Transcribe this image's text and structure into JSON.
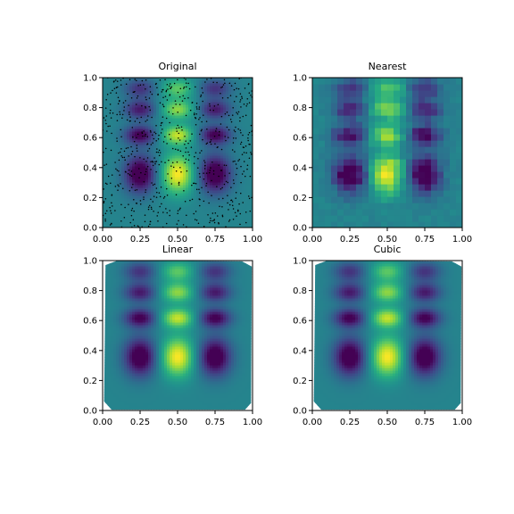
{
  "chart_data": [
    {
      "type": "heatmap",
      "panel": "original",
      "title": "Original",
      "xlim": [
        0.0,
        1.0
      ],
      "ylim": [
        0.0,
        1.0
      ],
      "xticks": [
        "0.00",
        "0.25",
        "0.50",
        "0.75",
        "1.00"
      ],
      "yticks": [
        "0.0",
        "0.2",
        "0.4",
        "0.6",
        "0.8",
        "1.0"
      ],
      "colormap": "viridis",
      "field": "smooth",
      "has_scatter": true,
      "scatter_color": "#000000",
      "coverage": "full"
    },
    {
      "type": "heatmap",
      "panel": "nearest",
      "title": "Nearest",
      "xlim": [
        0.0,
        1.0
      ],
      "ylim": [
        0.0,
        1.0
      ],
      "xticks": [
        "0.00",
        "0.25",
        "0.50",
        "0.75",
        "1.00"
      ],
      "yticks": [
        "0.0",
        "0.2",
        "0.4",
        "0.6",
        "0.8",
        "1.0"
      ],
      "colormap": "viridis",
      "field": "blocky",
      "has_scatter": false,
      "coverage": "full"
    },
    {
      "type": "heatmap",
      "panel": "linear",
      "title": "Linear",
      "xlim": [
        0.0,
        1.0
      ],
      "ylim": [
        0.0,
        1.0
      ],
      "xticks": [
        "0.00",
        "0.25",
        "0.50",
        "0.75",
        "1.00"
      ],
      "yticks": [
        "0.0",
        "0.2",
        "0.4",
        "0.6",
        "0.8",
        "1.0"
      ],
      "colormap": "viridis",
      "field": "smooth",
      "has_scatter": false,
      "coverage": "convex-hull"
    },
    {
      "type": "heatmap",
      "panel": "cubic",
      "title": "Cubic",
      "xlim": [
        0.0,
        1.0
      ],
      "ylim": [
        0.0,
        1.0
      ],
      "xticks": [
        "0.00",
        "0.25",
        "0.50",
        "0.75",
        "1.00"
      ],
      "yticks": [
        "0.0",
        "0.2",
        "0.4",
        "0.6",
        "0.8",
        "1.0"
      ],
      "colormap": "viridis",
      "field": "smooth",
      "has_scatter": false,
      "coverage": "convex-hull"
    }
  ]
}
